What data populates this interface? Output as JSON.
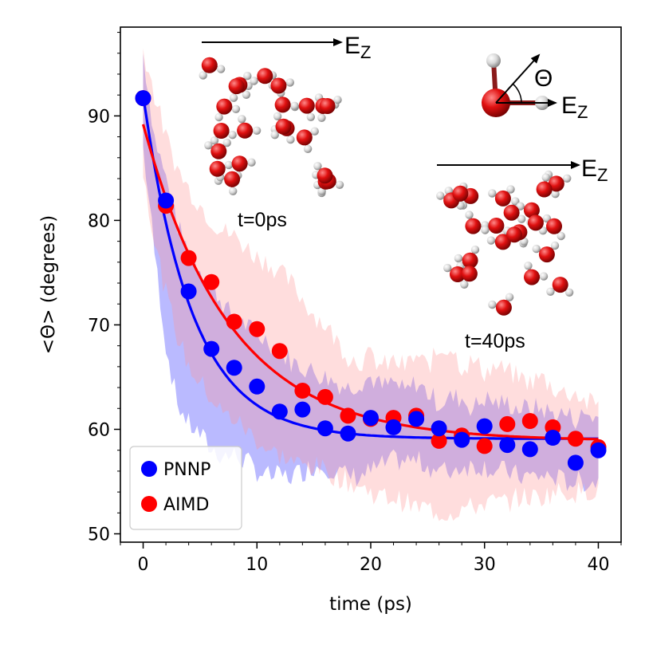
{
  "chart_data": {
    "type": "scatter",
    "xlabel": "time (ps)",
    "ylabel": "<Θ> (degrees)",
    "xlim": [
      -2,
      42
    ],
    "ylim": [
      49.2,
      98.5
    ],
    "xticks": [
      0,
      10,
      20,
      30,
      40
    ],
    "yticks": [
      50,
      60,
      70,
      80,
      90
    ],
    "grid": false,
    "legend_position": "lower-left",
    "series": [
      {
        "name": "PNNP",
        "color": "#0000ff",
        "band_color": "#0000ff",
        "x": [
          0,
          2,
          4,
          6,
          8,
          10,
          12,
          14,
          16,
          18,
          20,
          22,
          24,
          26,
          28,
          30,
          32,
          34,
          36,
          38,
          40
        ],
        "y": [
          91.7,
          81.9,
          73.2,
          67.7,
          65.9,
          64.1,
          61.7,
          61.9,
          60.1,
          59.6,
          61.1,
          60.2,
          61.0,
          60.1,
          59.0,
          60.3,
          58.5,
          58.1,
          59.2,
          56.8,
          58.0
        ],
        "fit": {
          "model": "exponential_decay",
          "y0": 92.0,
          "y_inf": 59.1,
          "tau_ps": 4.3
        },
        "band_x": [
          0,
          1,
          2,
          3,
          4,
          5,
          6,
          7,
          8,
          9,
          10,
          11,
          12,
          13,
          14,
          15,
          16,
          17,
          18,
          19,
          20,
          21,
          22,
          23,
          24,
          25,
          26,
          27,
          28,
          29,
          30,
          31,
          32,
          33,
          34,
          35,
          36,
          37,
          38,
          39,
          40
        ],
        "band_upper": [
          96.0,
          88.0,
          84.0,
          79.5,
          77.0,
          75.5,
          74.0,
          72.0,
          70.5,
          70.0,
          69.0,
          68.5,
          67.5,
          66.5,
          66.0,
          65.5,
          65.0,
          64.5,
          64.0,
          64.5,
          65.0,
          64.0,
          64.5,
          63.5,
          64.5,
          63.5,
          62.5,
          63.0,
          63.0,
          62.0,
          63.0,
          62.5,
          62.5,
          62.0,
          62.0,
          62.0,
          61.5,
          61.5,
          61.0,
          61.5,
          61.0
        ],
        "band_lower": [
          87.0,
          77.0,
          68.0,
          62.5,
          60.5,
          59.5,
          58.0,
          57.5,
          57.5,
          57.0,
          56.0,
          55.5,
          55.5,
          55.5,
          56.0,
          56.5,
          56.5,
          56.0,
          55.5,
          55.5,
          56.0,
          56.5,
          57.0,
          57.0,
          57.0,
          56.5,
          56.0,
          56.0,
          56.5,
          56.5,
          56.5,
          56.0,
          56.0,
          55.5,
          55.5,
          55.5,
          55.5,
          55.0,
          55.0,
          55.0,
          55.0
        ]
      },
      {
        "name": "AIMD",
        "color": "#ff0000",
        "band_color": "#ff9999",
        "x": [
          0,
          2,
          4,
          6,
          8,
          10,
          12,
          14,
          16,
          18,
          20,
          22,
          24,
          26,
          28,
          30,
          32,
          34,
          36,
          38,
          40
        ],
        "y": [
          91.7,
          81.4,
          76.4,
          74.1,
          70.3,
          69.6,
          67.5,
          63.7,
          63.1,
          61.3,
          61.0,
          61.1,
          61.3,
          58.9,
          59.4,
          58.4,
          60.5,
          60.8,
          60.2,
          59.1,
          58.3
        ],
        "fit": {
          "model": "exponential_decay",
          "y0": 89.2,
          "y_inf": 58.9,
          "tau_ps": 7.6
        },
        "band_x": [
          0,
          1,
          2,
          3,
          4,
          5,
          6,
          7,
          8,
          9,
          10,
          11,
          12,
          13,
          14,
          15,
          16,
          17,
          18,
          19,
          20,
          21,
          22,
          23,
          24,
          25,
          26,
          27,
          28,
          29,
          30,
          31,
          32,
          33,
          34,
          35,
          36,
          37,
          38,
          39,
          40
        ],
        "band_upper": [
          96.5,
          92.0,
          88.0,
          85.0,
          83.0,
          81.5,
          80.0,
          79.0,
          78.5,
          77.5,
          76.5,
          76.0,
          75.0,
          74.0,
          72.5,
          71.0,
          70.0,
          68.5,
          67.0,
          66.5,
          67.0,
          66.0,
          66.5,
          66.0,
          67.0,
          66.0,
          67.5,
          68.0,
          66.0,
          66.5,
          65.5,
          66.0,
          65.5,
          65.0,
          64.5,
          65.0,
          64.0,
          63.5,
          63.5,
          62.5,
          62.5
        ],
        "band_lower": [
          85.0,
          78.0,
          73.0,
          69.0,
          66.0,
          64.5,
          63.0,
          61.5,
          61.0,
          60.0,
          59.0,
          58.0,
          57.5,
          57.0,
          56.5,
          56.5,
          56.0,
          55.5,
          55.0,
          54.5,
          54.0,
          53.5,
          53.5,
          53.0,
          52.5,
          52.5,
          52.0,
          52.0,
          52.5,
          52.5,
          53.0,
          53.0,
          53.0,
          53.5,
          53.5,
          53.5,
          54.0,
          54.0,
          54.0,
          54.0,
          54.5
        ]
      }
    ],
    "annotations": {
      "inset1_label": "t=0ps",
      "inset2_label": "t=40ps",
      "field_label": "E",
      "field_subscript": "Z",
      "angle_label": "Θ"
    }
  }
}
